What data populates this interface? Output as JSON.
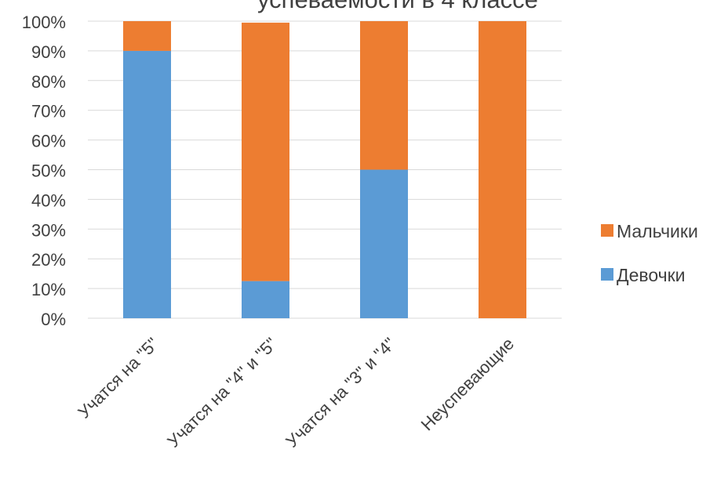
{
  "chart_data": {
    "type": "bar",
    "stacked": true,
    "percent_stacked": true,
    "title": "успеваемости в 4 классе",
    "categories": [
      "Учатся на \"5\"",
      "Учатся на \"4\" и \"5\"",
      "Учатся на \"3\" и \"4\"",
      "Неуспевающие"
    ],
    "series": [
      {
        "name": "Девочки",
        "values": [
          90,
          12.5,
          50,
          0
        ],
        "color": "#5B9BD5"
      },
      {
        "name": "Мальчики",
        "values": [
          10,
          87,
          50,
          100
        ],
        "color": "#ED7D31"
      }
    ],
    "ylim": [
      0,
      100
    ],
    "yticks": [
      "0%",
      "10%",
      "20%",
      "30%",
      "40%",
      "50%",
      "60%",
      "70%",
      "80%",
      "90%",
      "100%"
    ],
    "legend": {
      "position": "right",
      "items": [
        "Мальчики",
        "Девочки"
      ]
    },
    "grid": true,
    "gridline_color": "#D9D9D9",
    "text_color": "#404040"
  }
}
